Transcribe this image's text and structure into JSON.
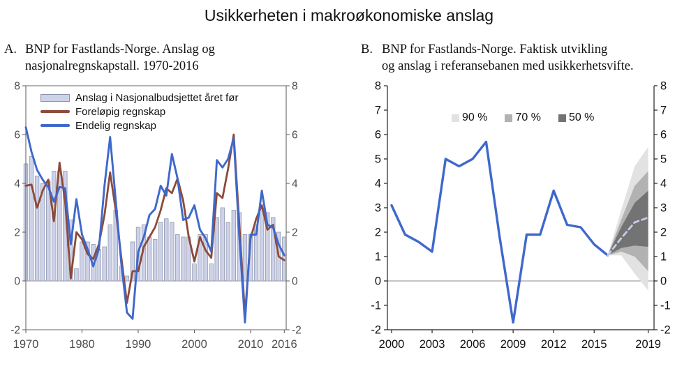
{
  "title": "Usikkerheten i makroøkonomiske anslag",
  "colors": {
    "background": "#ffffff",
    "bar_fill": "#cdd2e9",
    "bar_border": "#8d93aa",
    "forelopig_line": "#8C4A3A",
    "endelig_line": "#3E68CC",
    "fan_90": "#e2e2e2",
    "fan_70": "#b2b2b2",
    "fan_50": "#737373",
    "forecast_dash": "#c3cce9",
    "zero_line": "#8a8a8a",
    "axis_a": "#666666",
    "axis_b": "#222222",
    "tick_label_a": "#4d4d4d",
    "tick_label_b": "#111111"
  },
  "chart_data": [
    {
      "id": "panel_a",
      "type": "bar+line",
      "marker": "A.",
      "title_lines": [
        "BNP for Fastlands-Norge. Anslag og",
        "nasjonalregnskapstall. 1970-2016"
      ],
      "x_start": 1970,
      "x_end": 2016,
      "xticks": [
        1970,
        1980,
        1990,
        2000,
        2010,
        2016
      ],
      "ylim": [
        -2,
        8
      ],
      "yticks": [
        -2,
        0,
        2,
        4,
        6,
        8
      ],
      "grid": false,
      "legend_position": "top-left",
      "series": [
        {
          "name": "Anslag i Nasjonalbudsjettet året før",
          "type": "bar",
          "color": "#cdd2e9",
          "values": [
            4.8,
            5.1,
            4.3,
            4.0,
            4.1,
            4.5,
            4.5,
            4.5,
            2.5,
            0.5,
            1.6,
            1.6,
            1.5,
            1.3,
            1.4,
            2.3,
            2.9,
            0.6,
            0.2,
            1.6,
            2.2,
            2.3,
            1.8,
            1.7,
            2.4,
            2.55,
            2.4,
            1.9,
            1.8,
            1.8,
            0.7,
            1.9,
            1.9,
            0.7,
            2.6,
            3.0,
            2.4,
            2.9,
            2.8,
            1.9,
            1.9,
            2.3,
            3.0,
            2.8,
            2.6,
            2.0,
            1.8
          ]
        },
        {
          "name": "Foreløpig regnskap",
          "type": "line",
          "color": "#8C4A3A",
          "values": [
            3.9,
            3.95,
            3.0,
            3.7,
            4.15,
            2.45,
            4.85,
            3.25,
            0.1,
            2.0,
            1.7,
            1.1,
            0.9,
            1.5,
            2.7,
            4.45,
            2.9,
            0.95,
            -0.9,
            0.4,
            0.4,
            1.4,
            1.8,
            2.2,
            2.9,
            3.8,
            3.6,
            4.2,
            3.3,
            1.8,
            0.8,
            1.8,
            1.25,
            0.95,
            3.6,
            3.4,
            4.6,
            6.0,
            2.3,
            -1.4,
            1.75,
            2.55,
            3.1,
            2.1,
            2.3,
            1.0,
            0.85
          ]
        },
        {
          "name": "Endelig regnskap",
          "type": "line",
          "color": "#3E68CC",
          "values": [
            6.3,
            5.3,
            4.55,
            4.15,
            3.85,
            3.25,
            3.85,
            3.8,
            1.5,
            3.35,
            1.9,
            1.3,
            0.6,
            1.3,
            3.9,
            5.9,
            3.3,
            0.7,
            -1.3,
            -1.55,
            1.2,
            1.8,
            2.7,
            2.95,
            3.9,
            3.5,
            5.2,
            4.2,
            2.5,
            2.6,
            3.1,
            2.1,
            1.75,
            1.2,
            4.95,
            4.65,
            5.0,
            5.85,
            1.8,
            -1.7,
            1.9,
            1.9,
            3.7,
            2.3,
            2.2,
            1.5,
            1.05
          ]
        }
      ]
    },
    {
      "id": "panel_b",
      "type": "line+fan",
      "marker": "B.",
      "title_lines": [
        "BNP for Fastlands-Norge. Faktisk utvikling",
        "og anslag i referansebanen med usikkerhetsvifte."
      ],
      "x_start": 2000,
      "x_end": 2019,
      "xticks": [
        2000,
        2003,
        2006,
        2009,
        2012,
        2015,
        2019
      ],
      "ylim": [
        -2,
        8
      ],
      "yticks": [
        -2,
        -1,
        0,
        1,
        2,
        3,
        4,
        5,
        6,
        7,
        8
      ],
      "grid": false,
      "line": {
        "name": "Faktisk utvikling",
        "color": "#3E68CC",
        "x_start": 2000,
        "values": [
          3.1,
          1.9,
          1.6,
          1.2,
          5.0,
          4.7,
          5.0,
          5.7,
          1.8,
          -1.7,
          1.9,
          1.9,
          3.7,
          2.3,
          2.2,
          1.5,
          1.05
        ]
      },
      "forecast": {
        "name": "Anslag i referansebanen",
        "style": "dashed",
        "color": "#c3cce9",
        "x": [
          2016,
          2017,
          2018,
          2019
        ],
        "values": [
          1.05,
          1.75,
          2.4,
          2.6
        ]
      },
      "fan": {
        "legend": [
          "90 %",
          "70 %",
          "50 %"
        ],
        "colors": [
          "#e2e2e2",
          "#b2b2b2",
          "#737373"
        ],
        "x": [
          2016,
          2017,
          2018,
          2019
        ],
        "band_90": {
          "lower": [
            1.05,
            1.05,
            0.3,
            -0.4
          ],
          "upper": [
            1.05,
            2.9,
            4.7,
            5.5
          ]
        },
        "band_70": {
          "lower": [
            1.05,
            1.2,
            1.0,
            0.4
          ],
          "upper": [
            1.05,
            2.5,
            3.9,
            4.5
          ]
        },
        "band_50": {
          "lower": [
            1.05,
            1.35,
            1.45,
            1.4
          ],
          "upper": [
            1.05,
            2.2,
            3.2,
            3.7
          ]
        }
      }
    }
  ]
}
